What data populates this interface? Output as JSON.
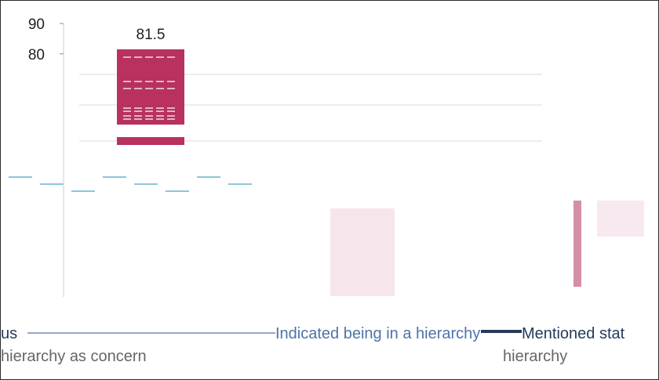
{
  "chart_data": {
    "type": "bar",
    "title": "",
    "xlabel": "",
    "ylabel": "",
    "ylim": [
      0,
      90
    ],
    "yticks": [
      80,
      90
    ],
    "grid": true,
    "legend_placement": "bottom",
    "series": [
      {
        "name": "",
        "color": "#b8315f",
        "values": [
          81.5
        ]
      }
    ],
    "data_labels": [
      "81.5"
    ],
    "legend": [
      {
        "text": "us",
        "color": "#243b5a"
      },
      {
        "text": "Indicated being in a hierarchy",
        "color": "#4f73a8"
      },
      {
        "text": "Mentioned stat",
        "color": "#243b5a"
      },
      {
        "text": "hierarchy as concern",
        "color": "#666666"
      },
      {
        "text": "hierarchy",
        "color": "#666666"
      }
    ]
  }
}
